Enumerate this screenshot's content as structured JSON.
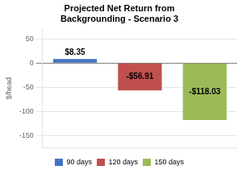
{
  "chart_data": {
    "type": "bar",
    "title": "Projected Net Return from\nBackgrounding - Scenario 3",
    "categories": [
      "90 days",
      "120 days",
      "150 days"
    ],
    "values": [
      8.35,
      -56.91,
      -118.03
    ],
    "value_labels": [
      "$8.35",
      "-$56.91",
      "-$118.03"
    ],
    "data_labels": true,
    "colors": [
      "#4472c4",
      "#c0504d",
      "#9bbb59"
    ],
    "ylabel": "$/head",
    "ylim": [
      -175,
      70
    ],
    "yticks": [
      -150,
      -100,
      -50,
      0,
      50
    ],
    "grid": true,
    "legend": "bottom",
    "tick_labels": "y"
  }
}
